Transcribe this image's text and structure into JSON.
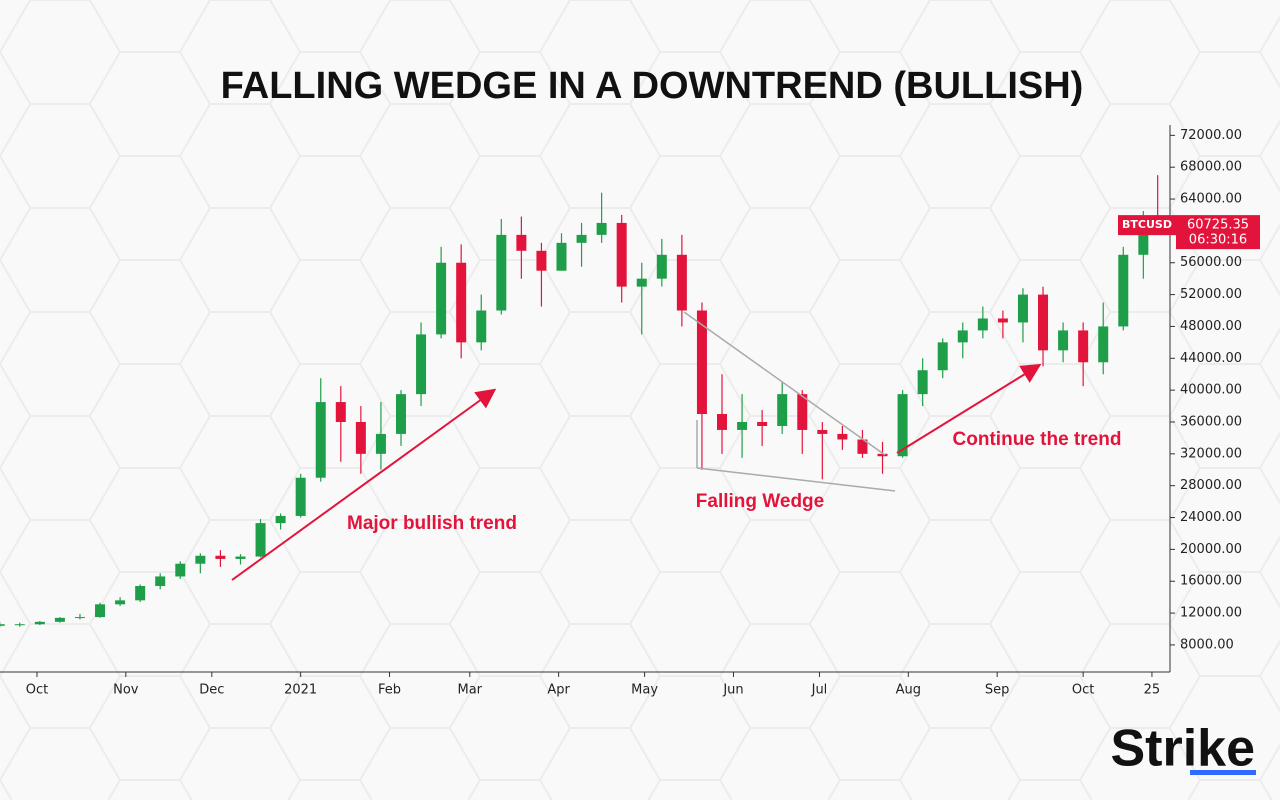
{
  "chart_data": {
    "type": "candlestick",
    "title": "FALLING WEDGE IN A DOWNTREND (BULLISH)",
    "series": [
      {
        "name": "BTCUSD",
        "x": [
          -13,
          -6,
          1,
          8,
          15,
          22,
          29,
          36,
          43,
          50,
          57,
          64,
          71,
          78,
          85,
          92,
          99,
          106,
          113,
          120,
          127,
          134,
          141,
          148,
          155,
          162,
          169,
          176,
          183,
          190,
          197,
          204,
          211,
          218,
          225,
          232,
          239,
          246,
          253,
          260,
          267,
          274,
          281,
          288,
          295,
          302,
          309,
          316,
          323,
          330,
          337,
          344,
          351,
          358,
          365,
          372,
          379,
          386,
          391
        ],
        "open": [
          10400,
          10600,
          10600,
          10900,
          11400,
          11500,
          13100,
          13600,
          15400,
          16600,
          18200,
          19200,
          18800,
          19100,
          23300,
          24200,
          29000,
          38500,
          36000,
          32000,
          34500,
          39500,
          47000,
          56000,
          46000,
          50000,
          59500,
          57500,
          55000,
          58500,
          59500,
          61000,
          53000,
          54000,
          57000,
          50000,
          37000,
          35000,
          36000,
          35500,
          39500,
          35000,
          34500,
          33800,
          32000,
          31700,
          39500,
          42500,
          46000,
          47500,
          49000,
          48500,
          52000,
          45000,
          47500,
          43500,
          48000,
          57000,
          61500
        ],
        "high": [
          10900,
          10800,
          11000,
          11500,
          11900,
          13300,
          14000,
          15600,
          17000,
          18500,
          19500,
          19900,
          19400,
          23800,
          24500,
          29500,
          41500,
          40500,
          38000,
          38500,
          40000,
          48500,
          58000,
          58300,
          52000,
          61500,
          61800,
          58500,
          59700,
          61000,
          64800,
          62000,
          56000,
          59000,
          59500,
          51000,
          42000,
          39500,
          37500,
          41000,
          40000,
          36000,
          35500,
          35000,
          33500,
          40000,
          44000,
          46500,
          48500,
          50500,
          50000,
          52800,
          53000,
          48500,
          48500,
          51000,
          58000,
          62500,
          67000
        ],
        "low": [
          10200,
          10300,
          10500,
          10800,
          11200,
          11400,
          12900,
          13400,
          15000,
          16300,
          17000,
          17800,
          18100,
          19000,
          22500,
          24000,
          28500,
          31000,
          29500,
          30000,
          33000,
          38000,
          46500,
          44000,
          45000,
          49500,
          54000,
          50500,
          55000,
          55500,
          58500,
          51000,
          47000,
          53000,
          48000,
          30000,
          32000,
          31500,
          33000,
          34500,
          32000,
          28800,
          32500,
          31500,
          29500,
          31500,
          38000,
          41500,
          44000,
          46500,
          46500,
          46000,
          43000,
          43500,
          40500,
          42000,
          47500,
          54000,
          60500
        ],
        "close": [
          10600,
          10600,
          10900,
          11400,
          11500,
          13100,
          13600,
          15400,
          16600,
          18200,
          19200,
          18800,
          19100,
          23300,
          24200,
          29000,
          38500,
          36000,
          32000,
          34500,
          39500,
          47000,
          56000,
          46000,
          50000,
          59500,
          57500,
          55000,
          58500,
          59500,
          61000,
          53000,
          54000,
          57000,
          50000,
          37000,
          35000,
          36000,
          35500,
          39500,
          35000,
          34500,
          33800,
          32000,
          31700,
          39500,
          42500,
          46000,
          47500,
          49000,
          48500,
          52000,
          45000,
          47500,
          43500,
          48000,
          57000,
          61500,
          60725.35
        ]
      }
    ],
    "up_color": "#1f9e4a",
    "down_color": "#e3143c",
    "last_price": 60725.35,
    "last_time": "06:30:16",
    "xlim": [
      -12.9,
      395.3
    ],
    "xticks": [
      {
        "value": 0,
        "label": "Oct"
      },
      {
        "value": 31,
        "label": "Nov"
      },
      {
        "value": 61,
        "label": "Dec"
      },
      {
        "value": 92,
        "label": "2021"
      },
      {
        "value": 123,
        "label": "Feb"
      },
      {
        "value": 151,
        "label": "Mar"
      },
      {
        "value": 182,
        "label": "Apr"
      },
      {
        "value": 212,
        "label": "May"
      },
      {
        "value": 243,
        "label": "Jun"
      },
      {
        "value": 273,
        "label": "Jul"
      },
      {
        "value": 304,
        "label": "Aug"
      },
      {
        "value": 335,
        "label": "Sep"
      },
      {
        "value": 365,
        "label": "Oct"
      },
      {
        "value": 389,
        "label": "25"
      }
    ],
    "ylim": [
      4600,
      73300
    ],
    "yticks": [
      {
        "value": 8000,
        "label": "8000.00"
      },
      {
        "value": 12000,
        "label": "12000.00"
      },
      {
        "value": 16000,
        "label": "16000.00"
      },
      {
        "value": 20000,
        "label": "20000.00"
      },
      {
        "value": 24000,
        "label": "24000.00"
      },
      {
        "value": 28000,
        "label": "28000.00"
      },
      {
        "value": 32000,
        "label": "32000.00"
      },
      {
        "value": 36000,
        "label": "36000.00"
      },
      {
        "value": 40000,
        "label": "40000.00"
      },
      {
        "value": 44000,
        "label": "44000.00"
      },
      {
        "value": 48000,
        "label": "48000.00"
      },
      {
        "value": 52000,
        "label": "52000.00"
      },
      {
        "value": 56000,
        "label": "56000.00"
      },
      {
        "value": 60000,
        "label": "60000.00"
      },
      {
        "value": 64000,
        "label": "64000.00"
      },
      {
        "value": 68000,
        "label": "68000.00"
      },
      {
        "value": 72000,
        "label": "72000.00"
      }
    ],
    "annotations": [
      "Major bullish trend",
      "Falling Wedge",
      "Continue the trend"
    ]
  },
  "logo": "Strike"
}
